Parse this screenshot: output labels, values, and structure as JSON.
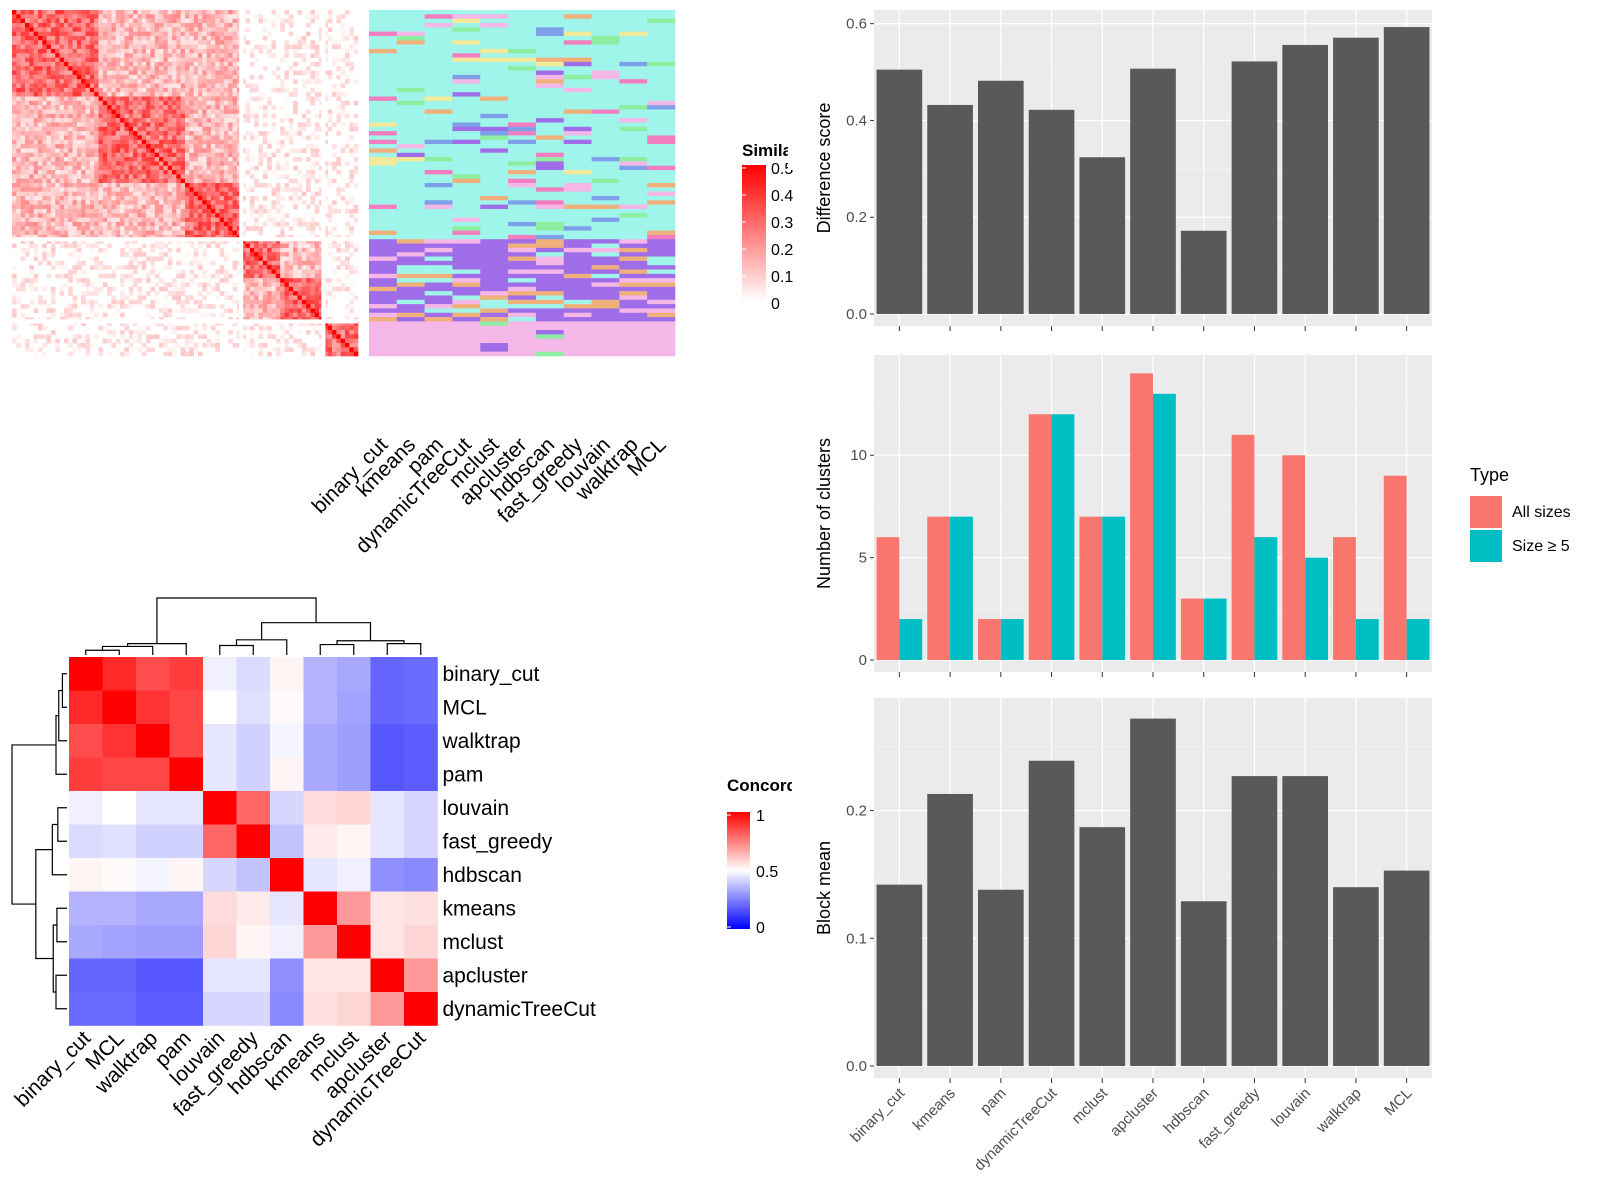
{
  "similarity_heatmap": {
    "legend_title": "Simila",
    "legend_ticks": [
      "0.5",
      "0.4",
      "0.3",
      "0.2",
      "0.1",
      "0"
    ],
    "colors": {
      "low": "#ffffff",
      "high": "#ff0000"
    },
    "n_terms": 80,
    "groups": [
      [
        0,
        53
      ],
      [
        53,
        72
      ],
      [
        72,
        80
      ]
    ],
    "method_labels": [
      "binary_cut",
      "kmeans",
      "pam",
      "dynamicTreeCut",
      "mclust",
      "apcluster",
      "hdbscan",
      "fast_greedy",
      "louvain",
      "walktrap",
      "MCL"
    ]
  },
  "concordance_heatmap": {
    "legend_title": "Concord",
    "legend_ticks": [
      "1",
      "0.5",
      "0"
    ],
    "colors": {
      "low": "#0000ff",
      "mid": "#ffffff",
      "high": "#ff0000"
    },
    "labels": [
      "binary_cut",
      "MCL",
      "walktrap",
      "pam",
      "louvain",
      "fast_greedy",
      "hdbscan",
      "kmeans",
      "mclust",
      "apcluster",
      "dynamicTreeCut"
    ],
    "matrix": [
      [
        1.0,
        0.92,
        0.85,
        0.88,
        0.47,
        0.43,
        0.52,
        0.35,
        0.33,
        0.2,
        0.21
      ],
      [
        0.92,
        1.0,
        0.9,
        0.86,
        0.5,
        0.44,
        0.51,
        0.35,
        0.32,
        0.2,
        0.21
      ],
      [
        0.85,
        0.9,
        1.0,
        0.86,
        0.45,
        0.41,
        0.48,
        0.33,
        0.31,
        0.17,
        0.18
      ],
      [
        0.88,
        0.86,
        0.86,
        1.0,
        0.45,
        0.41,
        0.52,
        0.33,
        0.31,
        0.17,
        0.18
      ],
      [
        0.47,
        0.5,
        0.45,
        0.45,
        1.0,
        0.8,
        0.42,
        0.57,
        0.58,
        0.45,
        0.42
      ],
      [
        0.43,
        0.44,
        0.41,
        0.41,
        0.8,
        1.0,
        0.38,
        0.54,
        0.52,
        0.45,
        0.42
      ],
      [
        0.52,
        0.51,
        0.48,
        0.52,
        0.42,
        0.38,
        1.0,
        0.45,
        0.47,
        0.28,
        0.27
      ],
      [
        0.35,
        0.35,
        0.33,
        0.33,
        0.57,
        0.54,
        0.45,
        1.0,
        0.7,
        0.55,
        0.56
      ],
      [
        0.33,
        0.32,
        0.31,
        0.31,
        0.58,
        0.52,
        0.47,
        0.7,
        1.0,
        0.55,
        0.58
      ],
      [
        0.2,
        0.2,
        0.17,
        0.17,
        0.45,
        0.45,
        0.28,
        0.55,
        0.55,
        1.0,
        0.7
      ],
      [
        0.21,
        0.21,
        0.18,
        0.18,
        0.42,
        0.42,
        0.27,
        0.56,
        0.58,
        0.7,
        1.0
      ]
    ]
  },
  "bar_panels": {
    "categories": [
      "binary_cut",
      "kmeans",
      "pam",
      "dynamicTreeCut",
      "mclust",
      "apcluster",
      "hdbscan",
      "fast_greedy",
      "louvain",
      "walktrap",
      "MCL"
    ],
    "panel_bg": "#ebebeb",
    "bar_color": "#595959"
  },
  "chart_data": [
    {
      "type": "bar",
      "ylabel": "Difference score",
      "categories": [
        "binary_cut",
        "kmeans",
        "pam",
        "dynamicTreeCut",
        "mclust",
        "apcluster",
        "hdbscan",
        "fast_greedy",
        "louvain",
        "walktrap",
        "MCL"
      ],
      "values": [
        0.505,
        0.432,
        0.482,
        0.422,
        0.324,
        0.507,
        0.172,
        0.522,
        0.556,
        0.571,
        0.593
      ],
      "ylim": [
        0,
        0.62
      ],
      "yticks": [
        0.0,
        0.2,
        0.4,
        0.6
      ],
      "ytick_labels": [
        "0.0",
        "0.2",
        "0.4",
        "0.6"
      ]
    },
    {
      "type": "bar",
      "ylabel": "Number of clusters",
      "categories": [
        "binary_cut",
        "kmeans",
        "pam",
        "dynamicTreeCut",
        "mclust",
        "apcluster",
        "hdbscan",
        "fast_greedy",
        "louvain",
        "walktrap",
        "MCL"
      ],
      "series": [
        {
          "name": "All sizes",
          "color": "#f8766d",
          "values": [
            6,
            7,
            2,
            12,
            7,
            14,
            3,
            11,
            10,
            6,
            9
          ]
        },
        {
          "name": "Size ≥ 5",
          "color": "#00bfc4",
          "values": [
            2,
            7,
            2,
            12,
            7,
            13,
            3,
            6,
            5,
            2,
            2
          ]
        }
      ],
      "ylim": [
        0,
        14.7
      ],
      "yticks": [
        0,
        5,
        10
      ],
      "ytick_labels": [
        "0",
        "5",
        "10"
      ],
      "legend": {
        "title": "Type",
        "position": "right"
      }
    },
    {
      "type": "bar",
      "ylabel": "Block mean",
      "categories": [
        "binary_cut",
        "kmeans",
        "pam",
        "dynamicTreeCut",
        "mclust",
        "apcluster",
        "hdbscan",
        "fast_greedy",
        "louvain",
        "walktrap",
        "MCL"
      ],
      "values": [
        0.142,
        0.213,
        0.138,
        0.239,
        0.187,
        0.272,
        0.129,
        0.227,
        0.227,
        0.14,
        0.153
      ],
      "ylim": [
        0,
        0.285
      ],
      "yticks": [
        0.0,
        0.1,
        0.2
      ],
      "ytick_labels": [
        "0.0",
        "0.1",
        "0.2"
      ]
    }
  ]
}
